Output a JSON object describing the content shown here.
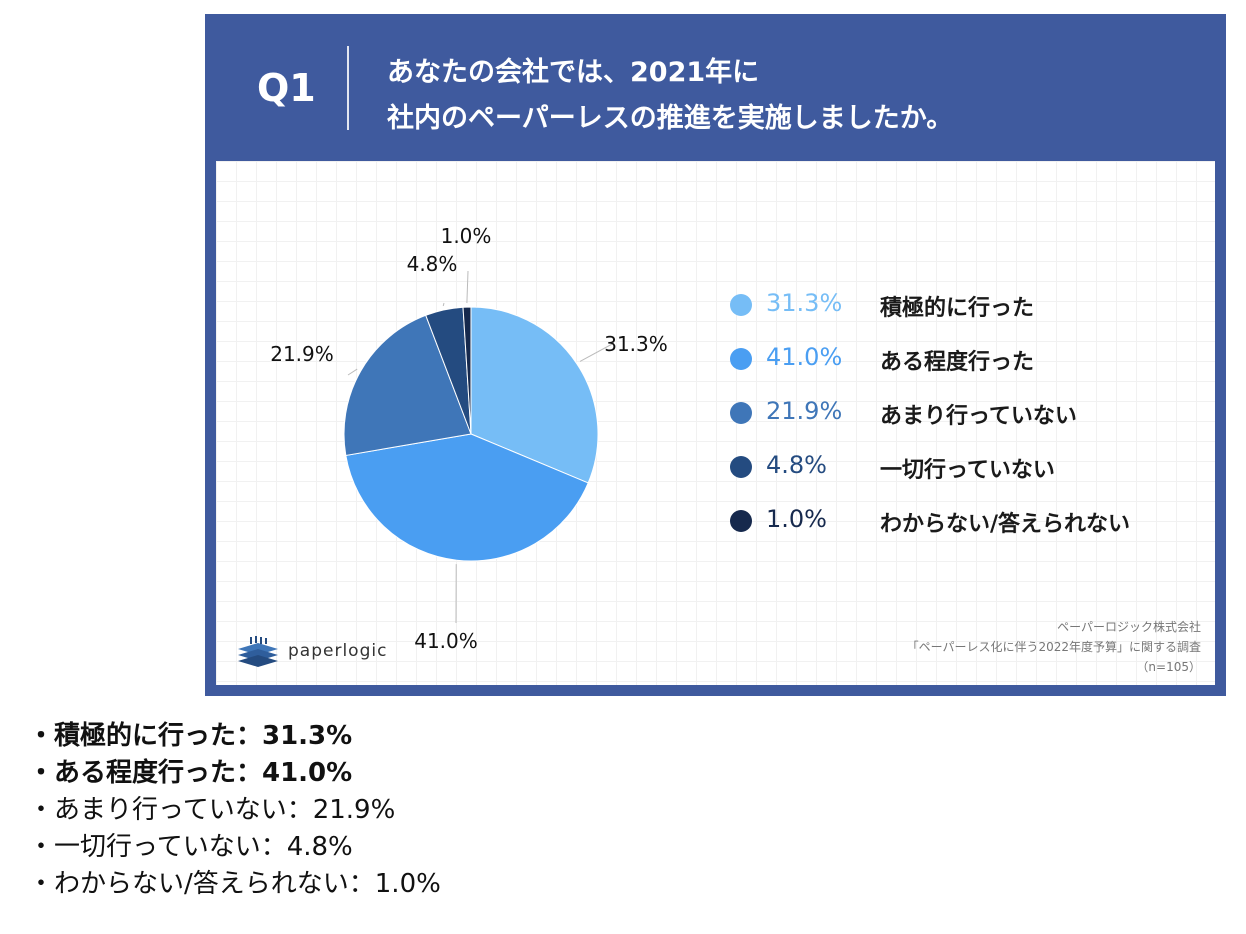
{
  "header": {
    "question_number": "Q1",
    "title_line1": "あなたの会社では、2021年に",
    "title_line2": "社内のペーパーレスの推進を実施しましたか。"
  },
  "chart_data": {
    "type": "pie",
    "categories": [
      "積極的に行った",
      "ある程度行った",
      "あまり行っていない",
      "一切行っていない",
      "わからない/答えられない"
    ],
    "values": [
      31.3,
      41.0,
      21.9,
      4.8,
      1.0
    ],
    "value_labels": [
      "31.3%",
      "41.0%",
      "21.9%",
      "4.8%",
      "1.0%"
    ],
    "colors": [
      "#76bdf6",
      "#4a9ef2",
      "#3f76b8",
      "#244b80",
      "#16294d"
    ],
    "legend_position": "right",
    "start_angle_deg": 0,
    "direction": "clockwise"
  },
  "source": {
    "company": "ペーパーロジック株式会社",
    "survey": "「ペーパーレス化に伴う2022年度予算」に関する調査",
    "sample": "（n=105）"
  },
  "logo": {
    "text": "paperlogic",
    "icon": "paperlogic-layers-icon"
  },
  "summary": [
    {
      "label": "積極的に行った",
      "separator": "：",
      "value": "31.3%",
      "bold": true
    },
    {
      "label": "ある程度行った",
      "separator": "：",
      "value": "41.0%",
      "bold": true
    },
    {
      "label": "あまり行っていない",
      "separator": "：",
      "value": "21.9%",
      "bold": false
    },
    {
      "label": "一切行っていない",
      "separator": "：",
      "value": "4.8%",
      "bold": false
    },
    {
      "label": "わからない/答えられない",
      "separator": "：",
      "value": "1.0%",
      "bold": false
    }
  ],
  "summary_bullet": "・"
}
